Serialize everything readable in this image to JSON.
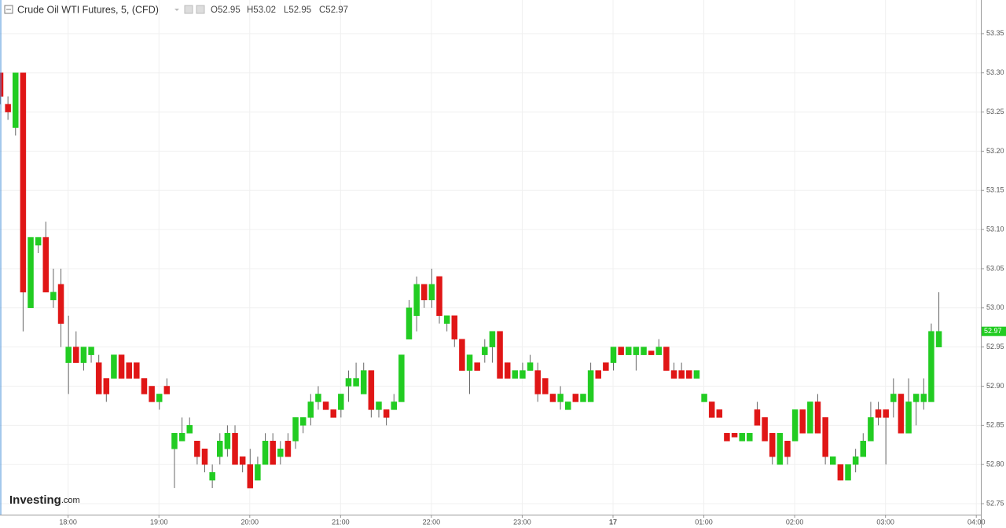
{
  "chart_data": {
    "type": "candlestick",
    "title": "Crude Oil WTI Futures, 5, (CFD)",
    "ohlc_header": [
      "O52.95",
      "H53.02",
      "L52.95",
      "C52.97"
    ],
    "logo": [
      "Investing",
      ".com"
    ],
    "last_price": 52.97,
    "up_color": "#22cc22",
    "down_color": "#e01616",
    "grid": true,
    "xlim": [
      1035,
      1683
    ],
    "ylim": [
      52.736,
      53.393
    ],
    "xticks": [
      {
        "value": 1080,
        "label": "18:00"
      },
      {
        "value": 1140,
        "label": "19:00"
      },
      {
        "value": 1200,
        "label": "20:00"
      },
      {
        "value": 1260,
        "label": "21:00"
      },
      {
        "value": 1320,
        "label": "22:00"
      },
      {
        "value": 1380,
        "label": "23:00"
      },
      {
        "value": 1440,
        "label": "17"
      },
      {
        "value": 1500,
        "label": "01:00"
      },
      {
        "value": 1560,
        "label": "02:00"
      },
      {
        "value": 1620,
        "label": "03:00"
      },
      {
        "value": 1680,
        "label": "04:00"
      }
    ],
    "yticks": [
      52.75,
      {
        "value": 52.8,
        "label": "52.80"
      },
      52.85,
      {
        "value": 52.9,
        "label": "52.90"
      },
      52.95,
      {
        "value": 53.0,
        "label": "53.00"
      },
      53.05,
      {
        "value": 53.1,
        "label": "53.10"
      },
      53.15,
      {
        "value": 53.2,
        "label": "53.20"
      },
      53.25,
      {
        "value": 53.3,
        "label": "53.30"
      },
      53.35
    ],
    "x": [
      1035,
      1040,
      1045,
      1050,
      1055,
      1060,
      1065,
      1070,
      1075,
      1080,
      1085,
      1090,
      1095,
      1100,
      1105,
      1110,
      1115,
      1120,
      1125,
      1130,
      1135,
      1140,
      1145,
      1150,
      1155,
      1160,
      1165,
      1170,
      1175,
      1180,
      1185,
      1190,
      1195,
      1200,
      1205,
      1210,
      1215,
      1220,
      1225,
      1230,
      1235,
      1240,
      1245,
      1250,
      1255,
      1260,
      1265,
      1270,
      1275,
      1280,
      1285,
      1290,
      1295,
      1300,
      1305,
      1310,
      1315,
      1320,
      1325,
      1330,
      1335,
      1340,
      1345,
      1350,
      1355,
      1360,
      1365,
      1370,
      1375,
      1380,
      1385,
      1390,
      1395,
      1400,
      1405,
      1410,
      1415,
      1420,
      1425,
      1430,
      1435,
      1440,
      1445,
      1450,
      1455,
      1460,
      1465,
      1470,
      1475,
      1480,
      1485,
      1490,
      1495,
      1500,
      1505,
      1510,
      1515,
      1520,
      1525,
      1530,
      1535,
      1540,
      1545,
      1550,
      1555,
      1560,
      1565,
      1570,
      1575,
      1580,
      1585,
      1590,
      1595,
      1600,
      1605,
      1610,
      1615,
      1620,
      1625,
      1630,
      1635,
      1640,
      1645,
      1650,
      1655
    ],
    "open": [
      53.3,
      53.26,
      53.23,
      53.3,
      53.0,
      53.08,
      53.09,
      53.01,
      53.03,
      52.93,
      52.95,
      52.93,
      52.94,
      52.93,
      52.91,
      52.91,
      52.94,
      52.93,
      52.93,
      52.91,
      52.9,
      52.88,
      52.9,
      52.82,
      52.83,
      52.84,
      52.83,
      52.82,
      52.78,
      52.81,
      52.82,
      52.84,
      52.81,
      52.8,
      52.78,
      52.8,
      52.83,
      52.81,
      52.83,
      52.83,
      52.85,
      52.86,
      52.88,
      52.88,
      52.87,
      52.87,
      52.9,
      52.9,
      52.89,
      52.92,
      52.87,
      52.87,
      52.87,
      52.88,
      52.96,
      52.99,
      53.03,
      53.01,
      53.04,
      52.98,
      52.99,
      52.96,
      52.92,
      52.93,
      52.94,
      52.95,
      52.97,
      52.93,
      52.91,
      52.91,
      52.92,
      52.92,
      52.91,
      52.89,
      52.88,
      52.87,
      52.89,
      52.88,
      52.88,
      52.92,
      52.93,
      52.93,
      52.95,
      52.94,
      52.94,
      52.94,
      52.945,
      52.94,
      52.95,
      52.92,
      52.92,
      52.92,
      52.91,
      52.88,
      52.88,
      52.87,
      52.84,
      52.84,
      52.83,
      52.83,
      52.87,
      52.86,
      52.84,
      52.8,
      52.83,
      52.83,
      52.87,
      52.84,
      52.88,
      52.86,
      52.8,
      52.8,
      52.78,
      52.8,
      52.81,
      52.83,
      52.87,
      52.87,
      52.88,
      52.89,
      52.84,
      52.88,
      52.88,
      52.88,
      52.95
    ],
    "high": [
      53.3,
      53.27,
      53.3,
      53.3,
      53.09,
      53.09,
      53.11,
      53.05,
      53.05,
      52.99,
      52.97,
      52.95,
      52.95,
      52.94,
      52.91,
      52.94,
      52.94,
      52.93,
      52.93,
      52.91,
      52.9,
      52.89,
      52.91,
      52.84,
      52.86,
      52.86,
      52.83,
      52.82,
      52.8,
      52.84,
      52.85,
      52.85,
      52.81,
      52.82,
      52.81,
      52.84,
      52.84,
      52.83,
      52.84,
      52.86,
      52.86,
      52.89,
      52.9,
      52.88,
      52.87,
      52.89,
      52.92,
      52.93,
      52.93,
      52.92,
      52.88,
      52.87,
      52.89,
      52.94,
      53.01,
      53.04,
      53.03,
      53.05,
      53.04,
      52.99,
      52.99,
      52.96,
      52.94,
      52.93,
      52.96,
      52.97,
      52.97,
      52.93,
      52.92,
      52.93,
      52.94,
      52.93,
      52.91,
      52.89,
      52.9,
      52.88,
      52.89,
      52.89,
      52.93,
      52.92,
      52.93,
      52.95,
      52.95,
      52.95,
      52.95,
      52.95,
      52.945,
      52.96,
      52.95,
      52.93,
      52.93,
      52.92,
      52.92,
      52.89,
      52.88,
      52.87,
      52.84,
      52.84,
      52.84,
      52.84,
      52.88,
      52.86,
      52.84,
      52.84,
      52.83,
      52.87,
      52.87,
      52.88,
      52.89,
      52.86,
      52.81,
      52.8,
      52.8,
      52.82,
      52.84,
      52.88,
      52.88,
      52.87,
      52.91,
      52.89,
      52.91,
      52.89,
      52.91,
      52.98,
      53.02
    ],
    "low": [
      53.26,
      53.24,
      53.22,
      52.97,
      53.0,
      53.07,
      53.02,
      53.0,
      52.95,
      52.89,
      52.93,
      52.92,
      52.93,
      52.89,
      52.88,
      52.91,
      52.91,
      52.91,
      52.91,
      52.89,
      52.88,
      52.87,
      52.89,
      52.77,
      52.83,
      52.84,
      52.8,
      52.79,
      52.77,
      52.8,
      52.81,
      52.8,
      52.79,
      52.77,
      52.78,
      52.8,
      52.8,
      52.8,
      52.81,
      52.82,
      52.84,
      52.85,
      52.87,
      52.87,
      52.86,
      52.86,
      52.88,
      52.9,
      52.89,
      52.86,
      52.86,
      52.85,
      52.87,
      52.88,
      52.96,
      52.97,
      53.0,
      53.0,
      52.98,
      52.97,
      52.95,
      52.92,
      52.89,
      52.92,
      52.93,
      52.93,
      52.91,
      52.91,
      52.91,
      52.91,
      52.92,
      52.88,
      52.89,
      52.88,
      52.87,
      52.87,
      52.88,
      52.88,
      52.88,
      52.91,
      52.92,
      52.92,
      52.94,
      52.94,
      52.92,
      52.94,
      52.94,
      52.94,
      52.92,
      52.91,
      52.91,
      52.91,
      52.91,
      52.88,
      52.86,
      52.86,
      52.83,
      52.835,
      52.83,
      52.83,
      52.85,
      52.83,
      52.8,
      52.8,
      52.8,
      52.83,
      52.84,
      52.84,
      52.84,
      52.8,
      52.8,
      52.78,
      52.78,
      52.79,
      52.81,
      52.83,
      52.85,
      52.8,
      52.86,
      52.84,
      52.84,
      52.85,
      52.87,
      52.88,
      52.95
    ],
    "close": [
      53.27,
      53.25,
      53.3,
      53.02,
      53.09,
      53.09,
      53.02,
      53.02,
      52.98,
      52.95,
      52.93,
      52.95,
      52.95,
      52.89,
      52.89,
      52.94,
      52.91,
      52.91,
      52.91,
      52.89,
      52.88,
      52.89,
      52.89,
      52.84,
      52.84,
      52.85,
      52.81,
      52.8,
      52.79,
      52.83,
      52.84,
      52.8,
      52.8,
      52.77,
      52.8,
      52.83,
      52.8,
      52.82,
      52.81,
      52.86,
      52.86,
      52.88,
      52.89,
      52.87,
      52.86,
      52.89,
      52.91,
      52.91,
      52.92,
      52.87,
      52.88,
      52.86,
      52.88,
      52.94,
      53.0,
      53.03,
      53.01,
      53.03,
      52.99,
      52.99,
      52.96,
      52.92,
      52.94,
      52.92,
      52.95,
      52.97,
      52.91,
      52.91,
      52.92,
      52.92,
      52.93,
      52.89,
      52.89,
      52.88,
      52.89,
      52.88,
      52.88,
      52.89,
      52.92,
      52.91,
      52.92,
      52.95,
      52.94,
      52.95,
      52.95,
      52.95,
      52.94,
      52.95,
      52.92,
      52.91,
      52.91,
      52.91,
      52.92,
      52.89,
      52.86,
      52.86,
      52.83,
      52.835,
      52.84,
      52.84,
      52.85,
      52.83,
      52.81,
      52.84,
      52.81,
      52.87,
      52.84,
      52.88,
      52.84,
      52.81,
      52.81,
      52.78,
      52.8,
      52.81,
      52.83,
      52.86,
      52.86,
      52.86,
      52.89,
      52.84,
      52.88,
      52.89,
      52.89,
      52.97,
      52.97
    ]
  }
}
